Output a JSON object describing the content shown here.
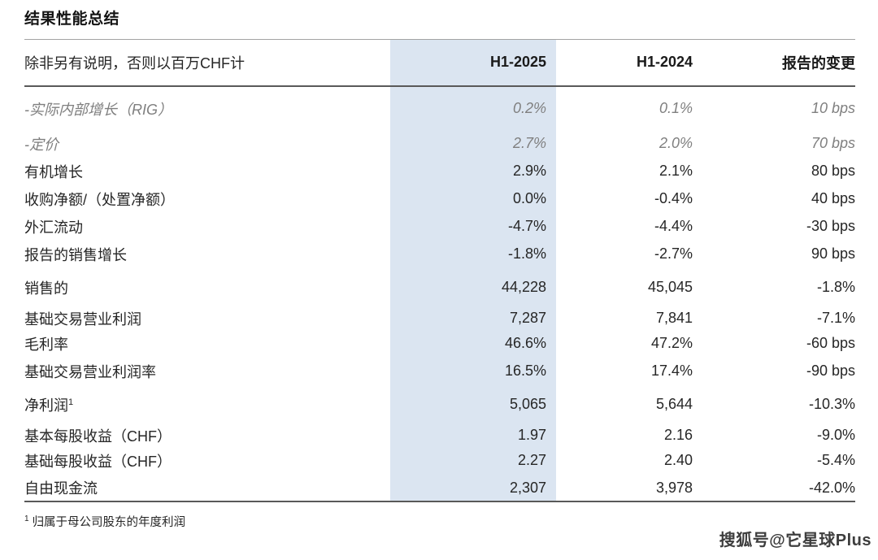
{
  "page": {
    "title": "结果性能总结",
    "watermark": "搜狐号@它星球Plus",
    "footnote": {
      "sup": "1",
      "text": "归属于母公司股东的年度利润"
    }
  },
  "table": {
    "unit_note": "除非另有说明，否则以百万CHF计",
    "columns": {
      "col_2025": "H1-2025",
      "col_2024": "H1-2024",
      "col_change": "报告的变更"
    },
    "highlight_color": "#dbe5f1",
    "rows": [
      {
        "label": "-实际内部增长（RIG）",
        "values": [
          "0.2%",
          "0.1%",
          "10 bps"
        ]
      },
      {
        "label": "-定价",
        "values": [
          "2.7%",
          "2.0%",
          "70 bps"
        ]
      },
      {
        "label": "有机增长",
        "values": [
          "2.9%",
          "2.1%",
          "80 bps"
        ]
      },
      {
        "label": "收购净额/（处置净额）",
        "values": [
          "0.0%",
          "-0.4%",
          "40 bps"
        ]
      },
      {
        "label": "外汇流动",
        "values": [
          "-4.7%",
          "-4.4%",
          "-30 bps"
        ]
      },
      {
        "label": "报告的销售增长",
        "values": [
          "-1.8%",
          "-2.7%",
          "90 bps"
        ]
      },
      {
        "label": "销售的",
        "values": [
          "44,228",
          "45,045",
          "-1.8%"
        ]
      },
      {
        "label": "基础交易营业利润",
        "values": [
          "7,287",
          "7,841",
          "-7.1%"
        ]
      },
      {
        "label": "毛利率",
        "values": [
          "46.6%",
          "47.2%",
          "-60 bps"
        ]
      },
      {
        "label": "基础交易营业利润率",
        "values": [
          "16.5%",
          "17.4%",
          "-90 bps"
        ]
      },
      {
        "label": "净利润",
        "label_sup": "1",
        "values": [
          "5,065",
          "5,644",
          "-10.3%"
        ]
      },
      {
        "label": "基本每股收益（CHF）",
        "values": [
          "1.97",
          "2.16",
          "-9.0%"
        ]
      },
      {
        "label": "基础每股收益（CHF）",
        "values": [
          "2.27",
          "2.40",
          "-5.4%"
        ]
      },
      {
        "label": "自由现金流",
        "values": [
          "2,307",
          "3,978",
          "-42.0%"
        ]
      }
    ]
  }
}
